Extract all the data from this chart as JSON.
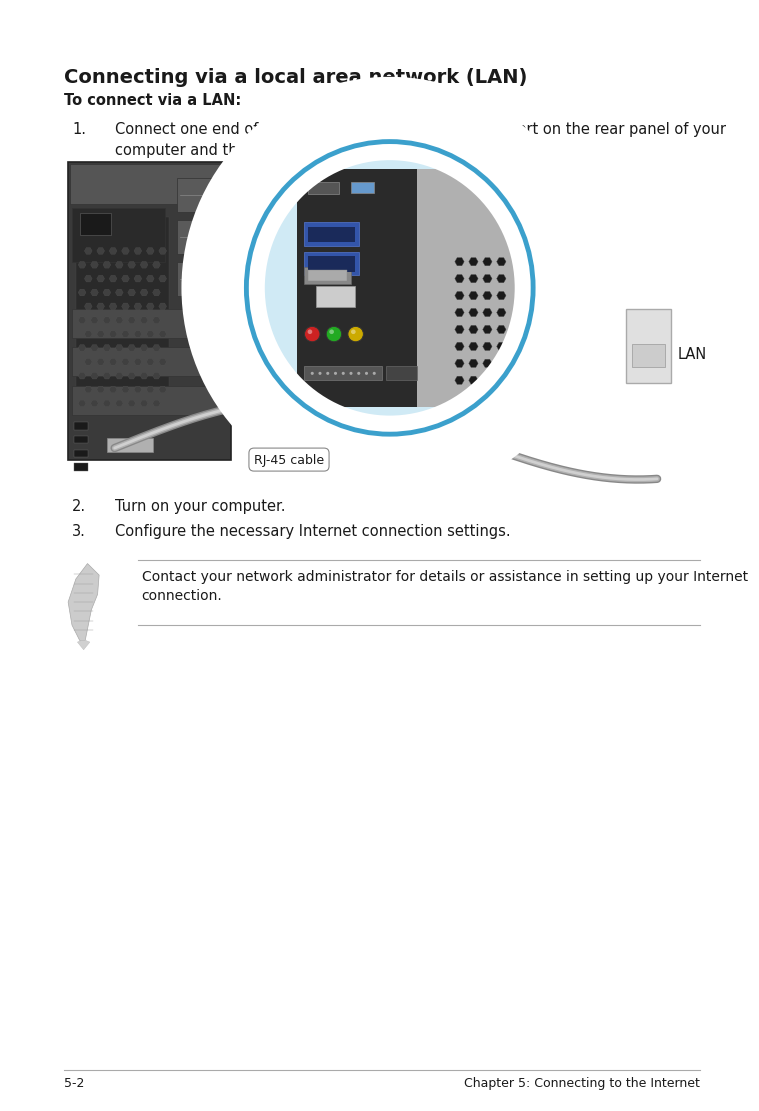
{
  "bg_color": "#ffffff",
  "title": "Connecting via a local area network (LAN)",
  "subtitle": "To connect via a LAN:",
  "step1_num": "1.",
  "step1": "Connect one end of an RJ-45 cable to the LAN (RJ-45) port on the rear panel of your\ncomputer and the other end to your LAN.",
  "step2_num": "2.",
  "step2": "Turn on your computer.",
  "step3_num": "3.",
  "step3": "Configure the necessary Internet connection settings.",
  "note_text": "Contact your network administrator for details or assistance in setting up your Internet\nconnection.",
  "footer_left": "5-2",
  "footer_right": "Chapter 5: Connecting to the Internet",
  "title_fontsize": 14,
  "subtitle_fontsize": 10.5,
  "body_fontsize": 10.5,
  "note_fontsize": 10,
  "footer_fontsize": 9
}
